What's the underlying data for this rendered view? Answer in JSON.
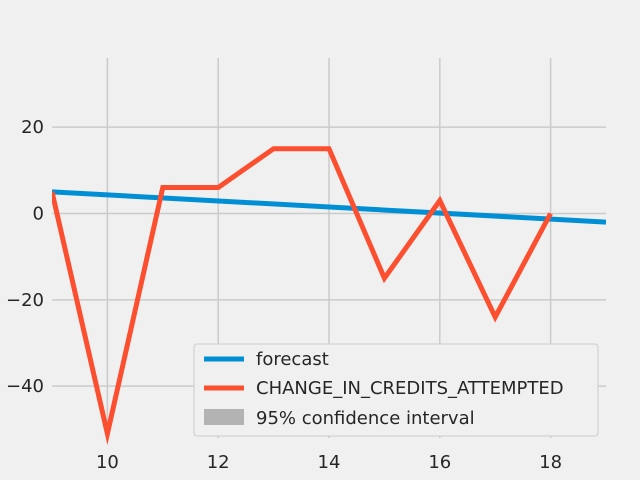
{
  "chart_data": {
    "type": "line",
    "title": "",
    "xlabel": "",
    "ylabel": "",
    "xlim": [
      9,
      19
    ],
    "ylim": [
      -52,
      36
    ],
    "xticks": [
      10,
      12,
      14,
      16,
      18
    ],
    "yticks": [
      20,
      0,
      -20,
      -40
    ],
    "ytick_labels": [
      "20",
      "0",
      "−20",
      "−40"
    ],
    "grid": true,
    "legend_position": "lower-right",
    "series": [
      {
        "name": "forecast",
        "color": "#008fd5",
        "x": [
          9,
          19
        ],
        "y": [
          5,
          -2
        ]
      },
      {
        "name": "CHANGE_IN_CREDITS_ATTEMPTED",
        "color": "#fc4f30",
        "x": [
          9,
          10,
          11,
          12,
          13,
          14,
          15,
          16,
          17,
          18
        ],
        "y": [
          5,
          -51,
          6,
          6,
          15,
          15,
          -15,
          3,
          -24,
          0
        ]
      }
    ],
    "confidence_band": {
      "name": "95% confidence interval",
      "color": "#b3b3b3"
    }
  }
}
